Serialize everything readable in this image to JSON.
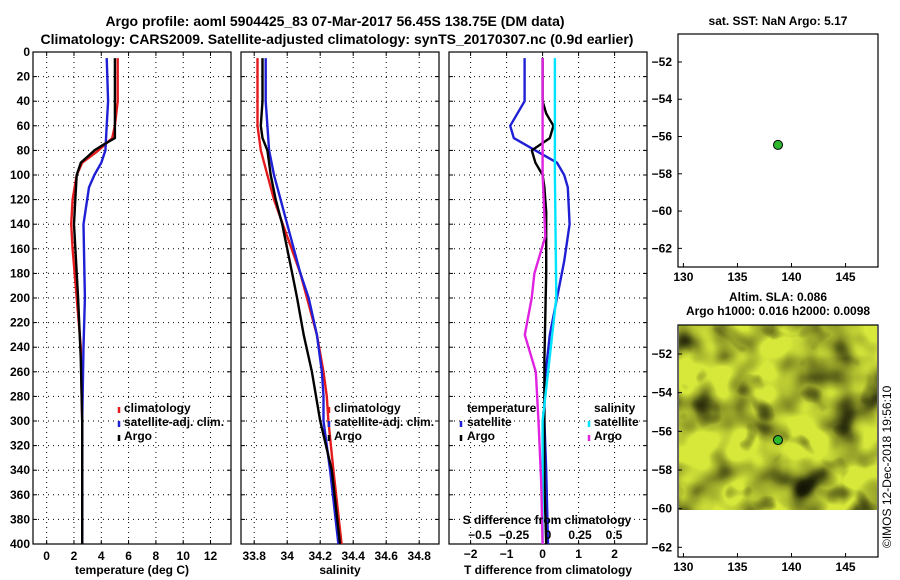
{
  "header": {
    "line1": "Argo profile: aoml 5904425_83 07-Mar-2017 56.45S 138.75E (DM data)",
    "line2": "Climatology: CARS2009. Satellite-adjusted climatology: synTS_20170307.nc (0.9d earlier)"
  },
  "watermark": "©IMOS 12-Dec-2018 19:56:10",
  "colors": {
    "climatology": "#e41a1c",
    "satellite": "#1f1fd6",
    "argo": "#000000",
    "sat_salinity": "#00e5ff",
    "argo_salinity": "#e023e0",
    "map_dot": "#2db82d"
  },
  "chart_data": [
    {
      "id": "temperature",
      "type": "line",
      "xlabel": "temperature (deg C)",
      "ylabel": "",
      "xlim": [
        -1,
        13.5
      ],
      "ylim": [
        400,
        0
      ],
      "xticks": [
        0,
        2,
        4,
        6,
        8,
        10,
        12
      ],
      "yticks": [
        0,
        20,
        40,
        60,
        80,
        100,
        120,
        140,
        160,
        180,
        200,
        220,
        240,
        260,
        280,
        300,
        320,
        340,
        360,
        380,
        400
      ],
      "legend": [
        "climatology",
        "satellite-adj. clim.",
        "Argo"
      ],
      "series": [
        {
          "name": "climatology",
          "color": "#e41a1c",
          "depth": [
            5,
            40,
            60,
            70,
            80,
            85,
            90,
            100,
            120,
            140,
            160,
            200,
            240,
            300,
            400
          ],
          "values": [
            5.2,
            5.2,
            5.0,
            4.8,
            3.8,
            3.2,
            2.6,
            2.2,
            1.9,
            1.8,
            1.9,
            2.2,
            2.5,
            2.6,
            2.6
          ]
        },
        {
          "name": "satellite-adj. clim.",
          "color": "#1f1fd6",
          "depth": [
            5,
            40,
            60,
            80,
            90,
            100,
            110,
            140,
            200,
            240,
            300,
            400
          ],
          "values": [
            4.4,
            4.5,
            4.4,
            4.3,
            4.0,
            3.5,
            3.1,
            2.7,
            2.8,
            2.7,
            2.6,
            2.6
          ]
        },
        {
          "name": "Argo",
          "color": "#000000",
          "depth": [
            5,
            40,
            60,
            70,
            75,
            80,
            85,
            90,
            100,
            120,
            140,
            200,
            250,
            300,
            400
          ],
          "values": [
            5.0,
            5.0,
            5.0,
            5.0,
            4.2,
            3.5,
            3.0,
            2.5,
            2.2,
            2.1,
            2.0,
            2.3,
            2.5,
            2.6,
            2.6
          ]
        }
      ]
    },
    {
      "id": "salinity",
      "type": "line",
      "xlabel": "salinity",
      "ylabel": "",
      "xlim": [
        33.72,
        34.92
      ],
      "ylim": [
        400,
        0
      ],
      "xticks": [
        33.8,
        34,
        34.2,
        34.4,
        34.6,
        34.8
      ],
      "xticklabels": [
        "33.8",
        "34",
        "34.2",
        "34.4",
        "34.6",
        "34.8"
      ],
      "legend": [
        "climatology",
        "satellite-adj. clim.",
        "Argo"
      ],
      "series": [
        {
          "name": "climatology",
          "color": "#e41a1c",
          "depth": [
            5,
            50,
            60,
            80,
            100,
            120,
            150,
            180,
            200,
            230,
            260,
            280,
            300,
            340,
            400
          ],
          "values": [
            33.82,
            33.82,
            33.82,
            33.84,
            33.88,
            33.92,
            34.0,
            34.08,
            34.12,
            34.18,
            34.22,
            34.24,
            34.25,
            34.28,
            34.33
          ]
        },
        {
          "name": "satellite-adj. clim.",
          "color": "#1f1fd6",
          "depth": [
            5,
            40,
            60,
            80,
            100,
            120,
            150,
            180,
            200,
            230,
            260,
            280,
            300,
            340,
            400
          ],
          "values": [
            33.87,
            33.87,
            33.88,
            33.89,
            33.92,
            33.96,
            34.02,
            34.08,
            34.13,
            34.18,
            34.21,
            34.22,
            34.22,
            34.26,
            34.31
          ]
        },
        {
          "name": "Argo",
          "color": "#000000",
          "depth": [
            5,
            40,
            60,
            70,
            80,
            100,
            120,
            140,
            160,
            180,
            200,
            230,
            260,
            300,
            340,
            400
          ],
          "values": [
            33.85,
            33.85,
            33.84,
            33.85,
            33.88,
            33.9,
            33.93,
            33.97,
            34.0,
            34.03,
            34.06,
            34.1,
            34.15,
            34.2,
            34.27,
            34.32
          ]
        }
      ]
    },
    {
      "id": "difference",
      "type": "line",
      "xlabel": "T difference from climatology",
      "xlim": [
        -2.6,
        2.9
      ],
      "ylim": [
        400,
        0
      ],
      "xticks": [
        -2,
        -1,
        0,
        1,
        2
      ],
      "xticklabels": [
        "−2",
        "−1",
        "0",
        "1",
        "2"
      ],
      "s_axis_label": "S difference from climatology",
      "s_ticklabels": [
        "−0.5",
        "−0.25",
        "0",
        "0.25",
        "0.5"
      ],
      "legend_temperature_title": "temperature",
      "legend_salinity_title": "salinity",
      "legend": [
        "satellite",
        "Argo",
        "satellite",
        "Argo"
      ],
      "series": [
        {
          "name": "T satellite",
          "color": "#1f1fd6",
          "depth": [
            5,
            40,
            60,
            70,
            80,
            90,
            100,
            110,
            140,
            170,
            200,
            230,
            270,
            300,
            340,
            400
          ],
          "values": [
            -0.5,
            -0.5,
            -0.9,
            -0.8,
            -0.2,
            0.4,
            0.6,
            0.7,
            0.75,
            0.6,
            0.4,
            0.2,
            0.05,
            0.05,
            0.1,
            0.15
          ]
        },
        {
          "name": "T Argo",
          "color": "#000000",
          "depth": [
            5,
            40,
            50,
            60,
            70,
            80,
            90,
            100,
            110,
            130,
            180,
            250,
            300,
            350,
            400
          ],
          "values": [
            0.0,
            0.0,
            0.1,
            0.3,
            0.2,
            -0.3,
            -0.2,
            0.0,
            0.05,
            0.1,
            0.1,
            0.05,
            0.05,
            0.05,
            0.1
          ]
        },
        {
          "name": "S satellite",
          "color": "#00e5ff",
          "depth": [
            5,
            100,
            200,
            300,
            400
          ],
          "values": [
            0.09,
            0.09,
            0.1,
            0.0,
            0.0
          ]
        },
        {
          "name": "S Argo",
          "color": "#e023e0",
          "depth": [
            5,
            100,
            150,
            180,
            200,
            230,
            260,
            300,
            350,
            400
          ],
          "values": [
            0.0,
            0.0,
            0.02,
            -0.06,
            -0.08,
            -0.13,
            -0.05,
            -0.03,
            -0.01,
            0.0
          ]
        }
      ]
    },
    {
      "id": "sst_map",
      "type": "scatter",
      "title": "sat. SST: NaN Argo: 5.17",
      "xlim": [
        129.5,
        148
      ],
      "ylim": [
        -63,
        -50.5
      ],
      "xticks": [
        130,
        135,
        140,
        145
      ],
      "yticks": [
        -52,
        -54,
        -56,
        -58,
        -60,
        -62
      ],
      "points": [
        {
          "lon": 138.75,
          "lat": -56.45
        }
      ]
    },
    {
      "id": "sla_map",
      "type": "heatmap",
      "title_line1": "Altim. SLA: 0.086",
      "title_line2": "Argo h1000: 0.016 h2000: 0.0098",
      "xlim": [
        129.5,
        148
      ],
      "ylim": [
        -62.5,
        -50.5
      ],
      "xticks": [
        130,
        135,
        140,
        145
      ],
      "yticks": [
        -52,
        -54,
        -56,
        -58,
        -60,
        -62
      ],
      "points": [
        {
          "lon": 138.75,
          "lat": -56.45
        }
      ]
    }
  ]
}
